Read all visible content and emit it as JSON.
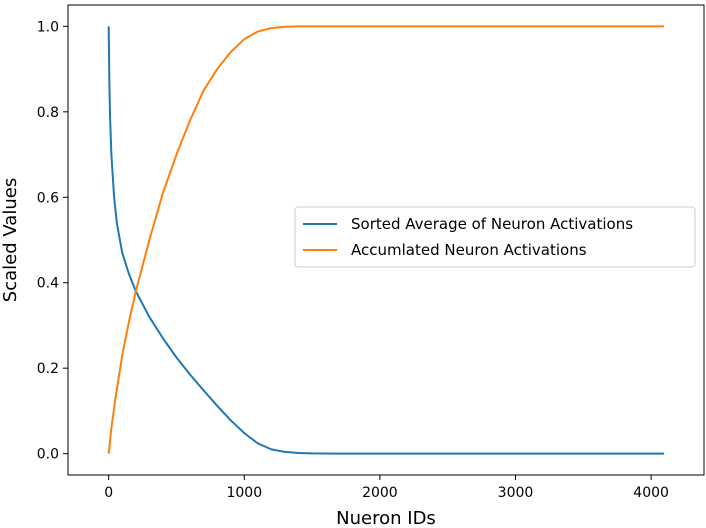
{
  "chart_data": {
    "type": "line",
    "title": "",
    "xlabel": "Nueron IDs",
    "ylabel": "Scaled Values",
    "xlim": [
      -300,
      4390
    ],
    "ylim": [
      -0.05,
      1.05
    ],
    "xticks": [
      0,
      1000,
      2000,
      3000,
      4000
    ],
    "yticks": [
      0.0,
      0.2,
      0.4,
      0.6,
      0.8,
      1.0
    ],
    "xtick_labels": [
      "0",
      "1000",
      "2000",
      "3000",
      "4000"
    ],
    "ytick_labels": [
      "0.0",
      "0.2",
      "0.4",
      "0.6",
      "0.8",
      "1.0"
    ],
    "grid": false,
    "legend_position": "center-right",
    "series": [
      {
        "name": "Sorted Average of Neuron Activations",
        "color": "#1f77b4",
        "x": [
          0,
          5,
          10,
          20,
          40,
          60,
          100,
          150,
          200,
          300,
          400,
          500,
          600,
          700,
          800,
          900,
          1000,
          1100,
          1200,
          1300,
          1400,
          1500,
          1700,
          2000,
          3000,
          4096
        ],
        "y": [
          1.0,
          0.87,
          0.79,
          0.7,
          0.6,
          0.54,
          0.47,
          0.42,
          0.38,
          0.32,
          0.27,
          0.225,
          0.185,
          0.148,
          0.112,
          0.078,
          0.048,
          0.024,
          0.01,
          0.004,
          0.0015,
          0.0005,
          0.0001,
          0.0,
          0.0,
          0.0
        ]
      },
      {
        "name": "Accumlated Neuron Activations",
        "color": "#ff7f0e",
        "x": [
          0,
          20,
          50,
          100,
          150,
          200,
          300,
          400,
          500,
          600,
          700,
          800,
          900,
          1000,
          1100,
          1200,
          1300,
          1400,
          1500,
          1700,
          2000,
          3000,
          4096
        ],
        "y": [
          0.0,
          0.06,
          0.13,
          0.23,
          0.31,
          0.38,
          0.5,
          0.61,
          0.7,
          0.78,
          0.85,
          0.9,
          0.94,
          0.97,
          0.988,
          0.996,
          0.999,
          1.0,
          1.0,
          1.0,
          1.0,
          1.0,
          1.0
        ]
      }
    ]
  }
}
